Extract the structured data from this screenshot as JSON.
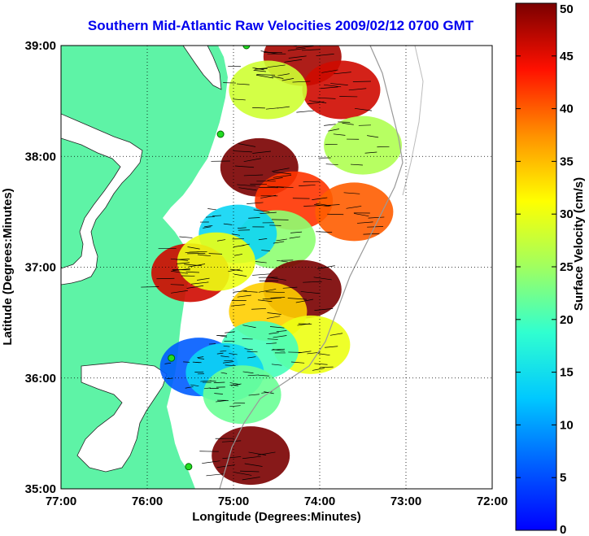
{
  "title": "Southern Mid-Atlantic Raw Velocities 2009/02/12 0700 GMT",
  "map": {
    "xlabel": "Longitude (Degrees:Minutes)",
    "ylabel": "Latitude (Degrees:Minutes)",
    "lon_range": [
      -77,
      -72
    ],
    "lat_range": [
      35,
      39
    ],
    "lon_ticks": [
      {
        "value": -77,
        "label": "77:00"
      },
      {
        "value": -76,
        "label": "76:00"
      },
      {
        "value": -75,
        "label": "75:00"
      },
      {
        "value": -74,
        "label": "74:00"
      },
      {
        "value": -73,
        "label": "73:00"
      },
      {
        "value": -72,
        "label": "72:00"
      }
    ],
    "lat_ticks": [
      {
        "value": 39,
        "label": "39:00"
      },
      {
        "value": 38,
        "label": "38:00"
      },
      {
        "value": 37,
        "label": "37:00"
      },
      {
        "value": 36,
        "label": "36:00"
      },
      {
        "value": 35,
        "label": "35:00"
      }
    ],
    "grid": "dotted",
    "land_color": "#5ef3a6",
    "water_color": "#ffffff",
    "arrow_color": "#000000",
    "station_color": "#22dd22",
    "stations": [
      {
        "lon": -74.85,
        "lat": 39.0
      },
      {
        "lon": -75.15,
        "lat": 38.2
      },
      {
        "lon": -75.72,
        "lat": 36.18
      },
      {
        "lon": -75.52,
        "lat": 35.2
      }
    ]
  },
  "colorbar": {
    "label": "Surface Velocity (cm/s)",
    "min": 0,
    "max": 50,
    "ticks": [
      "0",
      "5",
      "10",
      "15",
      "20",
      "25",
      "30",
      "35",
      "40",
      "45",
      "50"
    ],
    "tick_values": [
      0,
      5,
      10,
      15,
      20,
      25,
      30,
      35,
      40,
      45,
      50
    ],
    "colormap": "jet"
  },
  "chart_data": {
    "type": "heatmap",
    "title": "Southern Mid-Atlantic Raw Velocities 2009/02/12 0700 GMT",
    "xlabel": "Longitude (Degrees:Minutes)",
    "ylabel": "Latitude (Degrees:Minutes)",
    "xlim": [
      -77,
      -72
    ],
    "ylim": [
      35,
      39
    ],
    "value_label": "Surface Velocity (cm/s)",
    "value_range": [
      0,
      50
    ],
    "velocity_regions": [
      {
        "lon": -74.2,
        "lat": 38.9,
        "speed": 48
      },
      {
        "lon": -73.75,
        "lat": 38.6,
        "speed": 46
      },
      {
        "lon": -74.6,
        "lat": 38.6,
        "speed": 28
      },
      {
        "lon": -73.5,
        "lat": 38.1,
        "speed": 26
      },
      {
        "lon": -74.7,
        "lat": 37.9,
        "speed": 50
      },
      {
        "lon": -74.3,
        "lat": 37.6,
        "speed": 42
      },
      {
        "lon": -73.6,
        "lat": 37.5,
        "speed": 40
      },
      {
        "lon": -74.5,
        "lat": 37.25,
        "speed": 24
      },
      {
        "lon": -74.95,
        "lat": 37.3,
        "speed": 14
      },
      {
        "lon": -75.5,
        "lat": 36.95,
        "speed": 46
      },
      {
        "lon": -75.2,
        "lat": 37.05,
        "speed": 30
      },
      {
        "lon": -74.2,
        "lat": 36.8,
        "speed": 50
      },
      {
        "lon": -74.6,
        "lat": 36.6,
        "speed": 34
      },
      {
        "lon": -74.1,
        "lat": 36.3,
        "speed": 30
      },
      {
        "lon": -74.7,
        "lat": 36.25,
        "speed": 20
      },
      {
        "lon": -75.4,
        "lat": 36.1,
        "speed": 6
      },
      {
        "lon": -75.1,
        "lat": 36.05,
        "speed": 14
      },
      {
        "lon": -74.9,
        "lat": 35.85,
        "speed": 22
      },
      {
        "lon": -74.8,
        "lat": 35.3,
        "speed": 50
      }
    ]
  }
}
